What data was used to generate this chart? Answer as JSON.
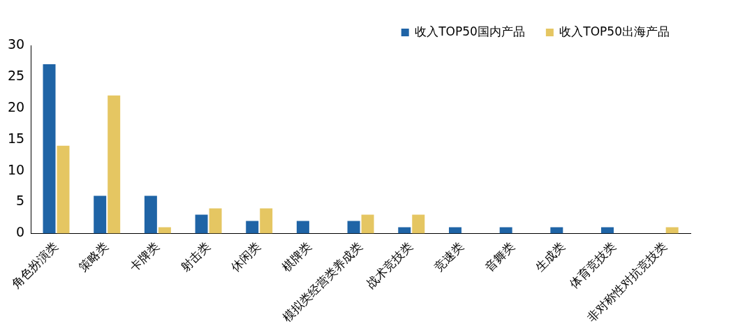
{
  "chart_data": {
    "type": "bar",
    "categories": [
      "角色扮演类",
      "策略类",
      "卡牌类",
      "射击类",
      "休闲类",
      "棋牌类",
      "模拟类经营类养成类",
      "战术竞技类",
      "竞速类",
      "音舞类",
      "生成类",
      "体育竞技类",
      "非对称性对抗竞技类"
    ],
    "series": [
      {
        "name": "收入TOP50国内产品",
        "color": "#1f64a6",
        "values": [
          27,
          6,
          6,
          3,
          2,
          2,
          2,
          1,
          1,
          1,
          1,
          1,
          0
        ]
      },
      {
        "name": "收入TOP50出海产品",
        "color": "#e5c662",
        "values": [
          14,
          22,
          1,
          4,
          4,
          0,
          3,
          3,
          0,
          0,
          0,
          0,
          1
        ]
      }
    ],
    "ylim": [
      0,
      30
    ],
    "yticks": [
      0,
      5,
      10,
      15,
      20,
      25,
      30
    ],
    "grid": false,
    "legend": "top right"
  }
}
